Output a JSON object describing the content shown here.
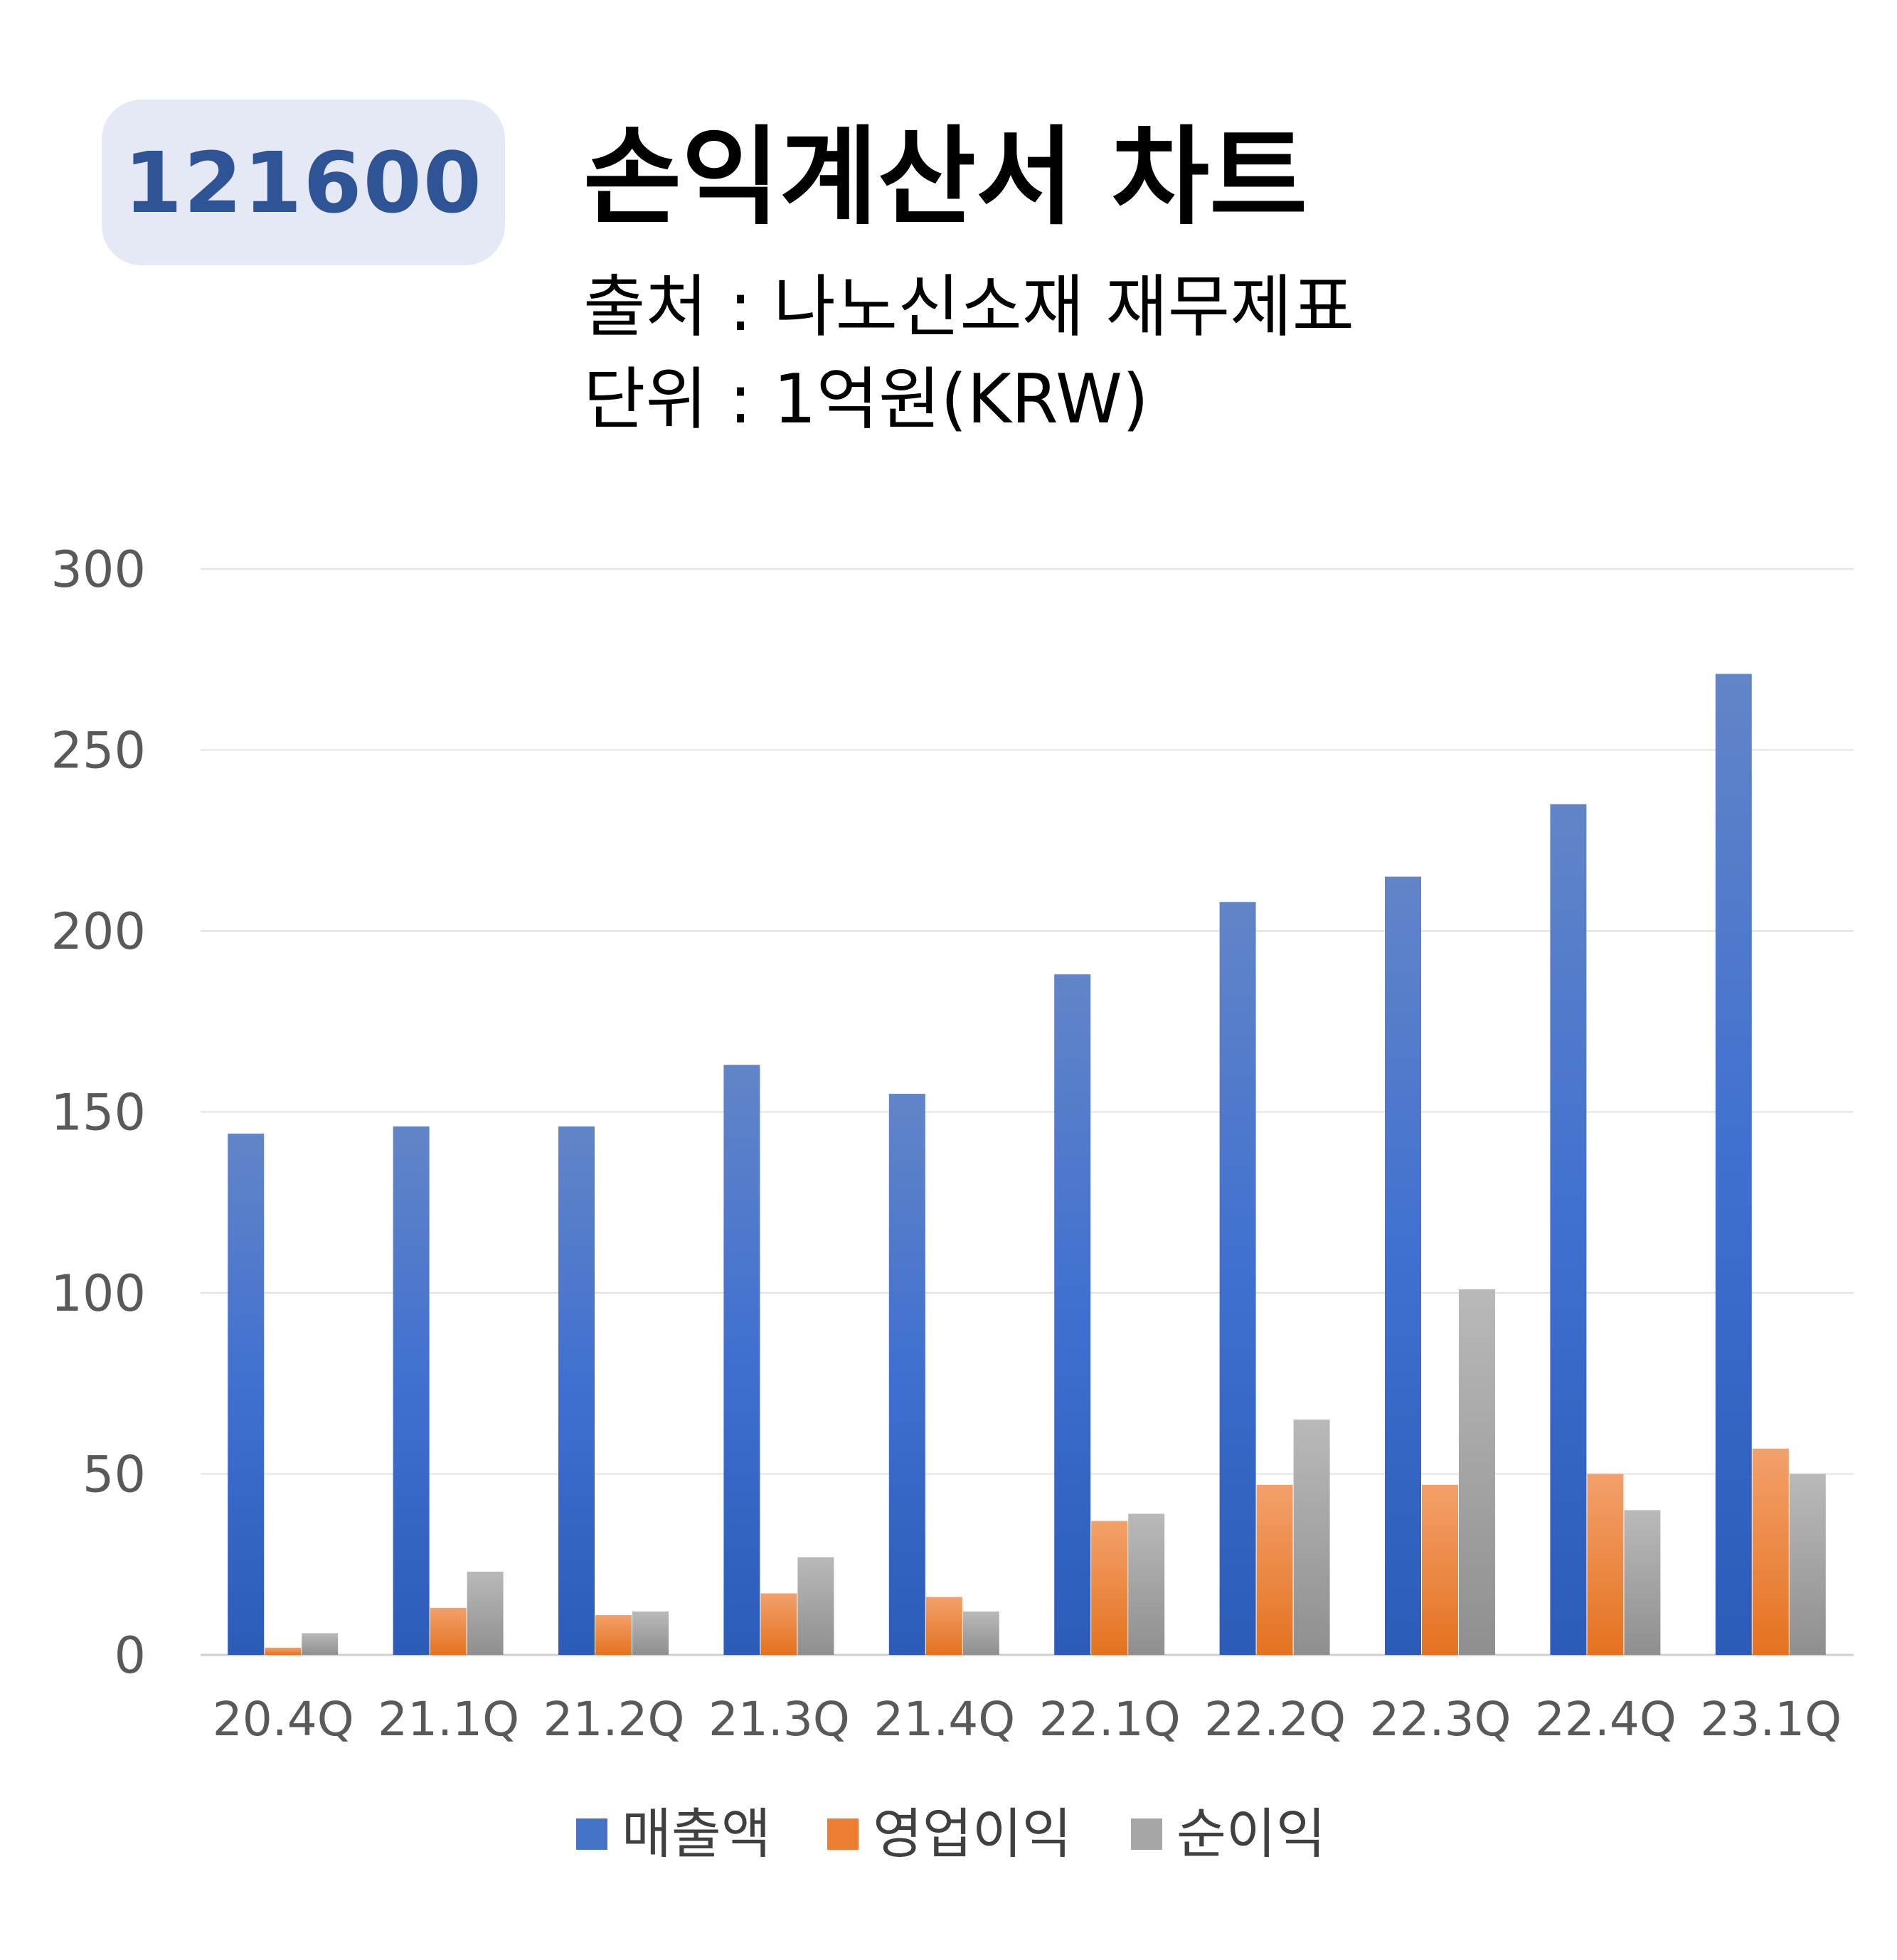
{
  "header": {
    "code": "121600",
    "title": "손익계산서 차트",
    "source_line": "출처 : 나노신소재 재무제표",
    "unit_line": "단위 : 1억원(KRW)"
  },
  "colors": {
    "revenue": "#4472c4",
    "operating_profit": "#ed7d31",
    "net_profit": "#a5a5a5",
    "badge_bg": "#e4e9f5",
    "badge_text": "#2f5496"
  },
  "chart_data": {
    "type": "bar",
    "categories": [
      "20.4Q",
      "21.1Q",
      "21.2Q",
      "21.3Q",
      "21.4Q",
      "22.1Q",
      "22.2Q",
      "22.3Q",
      "22.4Q",
      "23.1Q"
    ],
    "series": [
      {
        "name": "매출액",
        "values": [
          144,
          146,
          146,
          163,
          155,
          188,
          208,
          215,
          235,
          271
        ]
      },
      {
        "name": "영업이익",
        "values": [
          2,
          13,
          11,
          17,
          16,
          37,
          47,
          47,
          50,
          57
        ]
      },
      {
        "name": "순이익",
        "values": [
          6,
          23,
          12,
          27,
          12,
          39,
          65,
          101,
          40,
          50
        ]
      }
    ],
    "ylim": [
      0,
      300
    ],
    "yticks": [
      0,
      50,
      100,
      150,
      200,
      250,
      300
    ],
    "grid": true,
    "legend_position": "bottom"
  }
}
